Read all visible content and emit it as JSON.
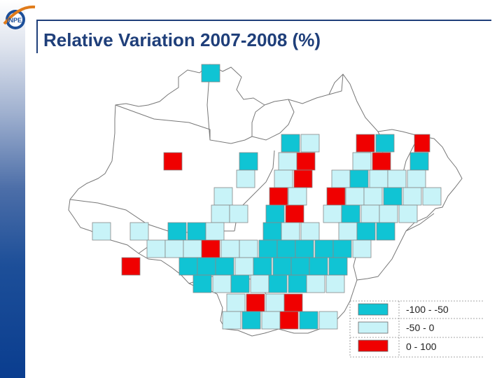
{
  "title": "Relative Variation 2007-2008 (%)",
  "logo": {
    "text": "INPE",
    "icon": "inpe-logo-icon"
  },
  "colors": {
    "class_high_decrease": "#10c4d4",
    "class_low_decrease": "#c8f3f8",
    "class_increase": "#f00000",
    "title": "#1f3f7a",
    "boundary": "#777777"
  },
  "legend": [
    {
      "label": "-100 - -50",
      "color": "#10c4d4"
    },
    {
      "label": "-50 - 0",
      "color": "#c8f3f8"
    },
    {
      "label": "0 - 100",
      "color": "#f00000"
    }
  ]
}
